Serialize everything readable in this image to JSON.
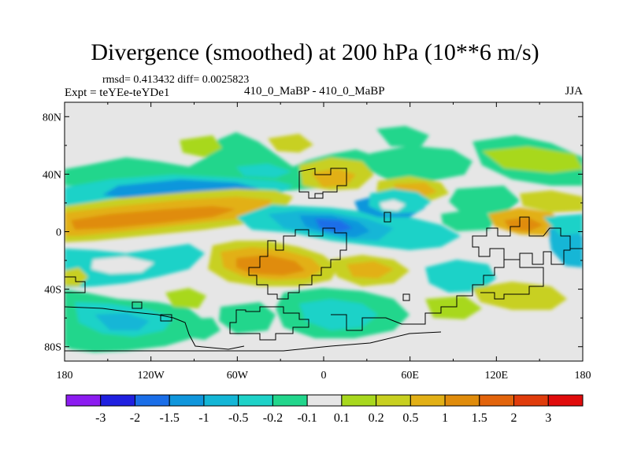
{
  "title": "Divergence (smoothed) at 200 hPa (10**6 m/s)",
  "stats": "rmsd= 0.413432 diff= 0.0025823",
  "experiment": "Expt = teYEe-teYDe1",
  "center_label": "410_0_MaBP - 410_0_MaBP",
  "season": "JJA",
  "map": {
    "projection": "cylindrical equidistant",
    "lon_range": [
      -180,
      180
    ],
    "lat_range": [
      -90,
      90
    ],
    "y_ticks": [
      {
        "lat": 80,
        "label": "80N"
      },
      {
        "lat": 40,
        "label": "40N"
      },
      {
        "lat": 0,
        "label": "0"
      },
      {
        "lat": -40,
        "label": "40S"
      },
      {
        "lat": -80,
        "label": "80S"
      }
    ],
    "x_ticks": [
      {
        "lon": -180,
        "label": "180"
      },
      {
        "lon": -120,
        "label": "120W"
      },
      {
        "lon": -60,
        "label": "60W"
      },
      {
        "lon": 0,
        "label": "0"
      },
      {
        "lon": 60,
        "label": "60E"
      },
      {
        "lon": 120,
        "label": "120E"
      },
      {
        "lon": 180,
        "label": "180"
      }
    ]
  },
  "colorbar": {
    "colors": [
      "#8c1cf0",
      "#2020e0",
      "#1a6ee8",
      "#1096dc",
      "#14b6d6",
      "#1ed2c8",
      "#22d68c",
      "#e6e6e6",
      "#a8d81e",
      "#c8d020",
      "#e2b016",
      "#e08c0c",
      "#e2640c",
      "#e03c0c",
      "#e00c0c"
    ],
    "labels": [
      "-3",
      "-2",
      "-1.5",
      "-1",
      "-0.5",
      "-0.2",
      "-0.1",
      "0.1",
      "0.2",
      "0.5",
      "1",
      "1.5",
      "2",
      "3"
    ]
  }
}
